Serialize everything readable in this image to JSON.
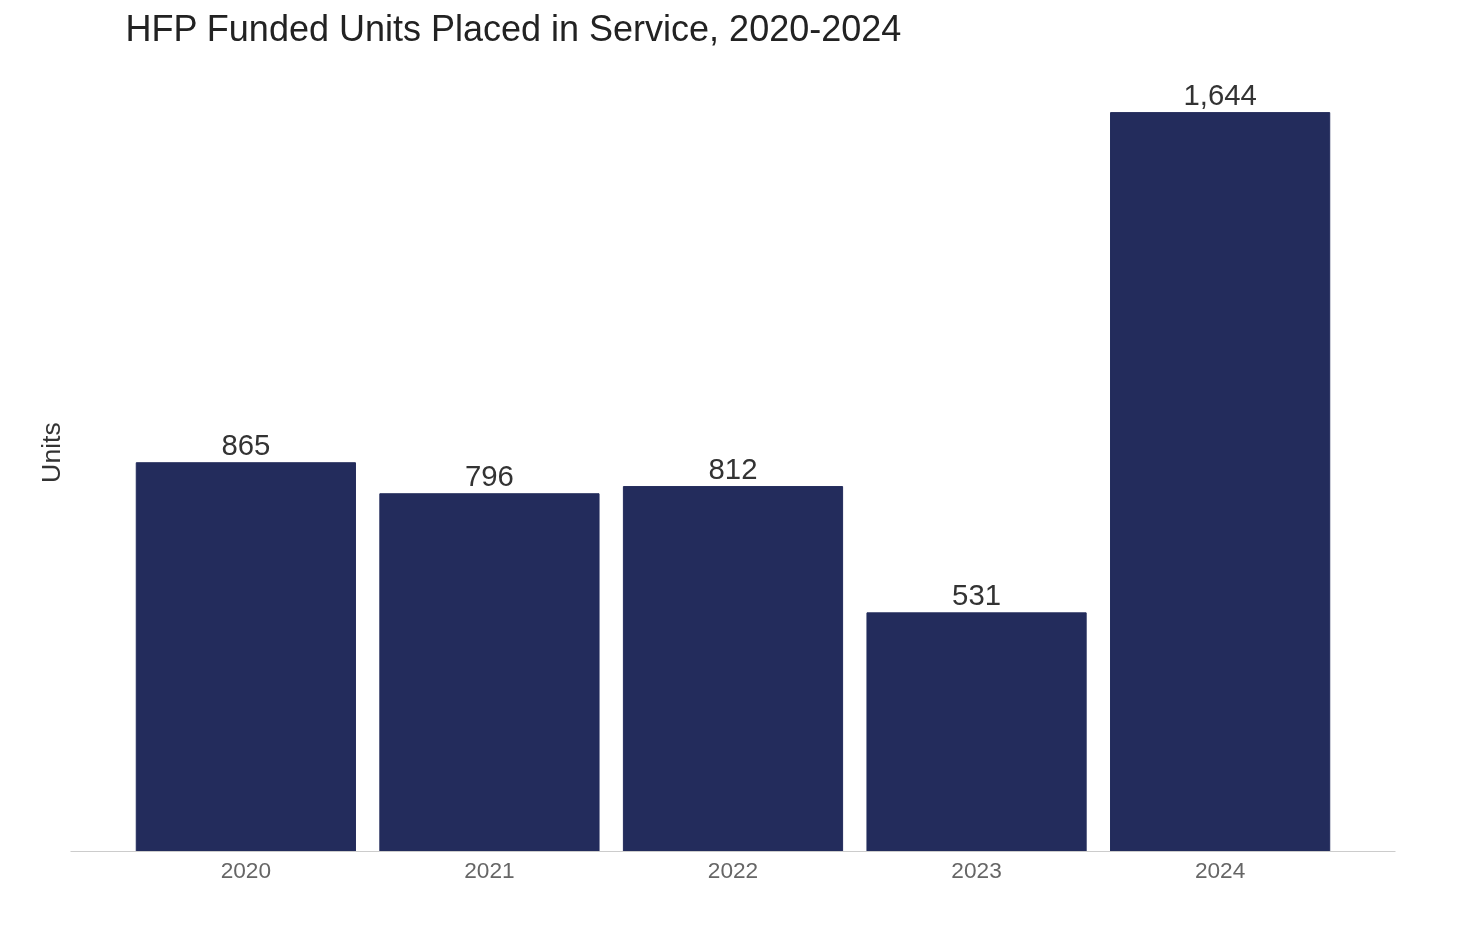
{
  "chart_data": {
    "type": "bar",
    "title": "HFP Funded Units Placed in Service, 2020-2024",
    "ylabel": "Units",
    "categories": [
      "2020",
      "2021",
      "2022",
      "2023",
      "2024"
    ],
    "values": [
      865,
      796,
      812,
      531,
      1644
    ],
    "value_labels": [
      "865",
      "796",
      "812",
      "531",
      "1,644"
    ],
    "color": "#232c5c",
    "grid": false
  }
}
